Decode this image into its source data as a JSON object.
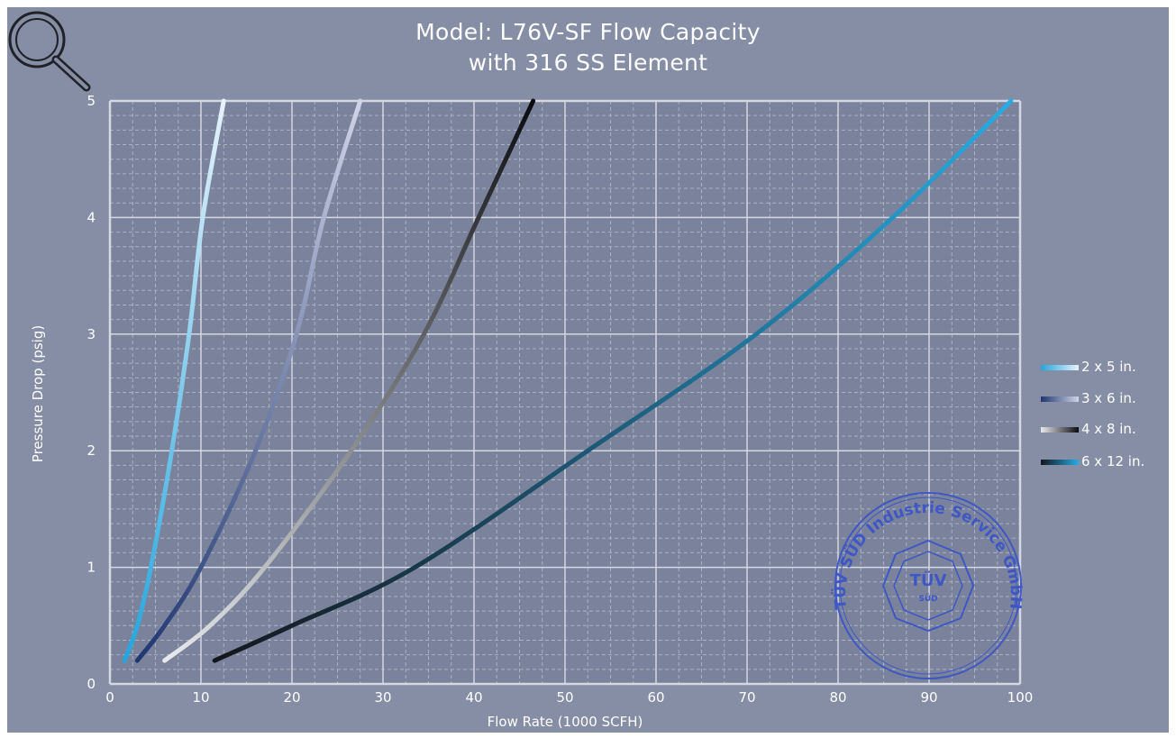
{
  "page": {
    "title_line1": "Model: L76V-SF Flow Capacity",
    "title_line2": "with 316 SS Element",
    "search_icon": "magnifier-icon",
    "stamp": {
      "text": "TÜV SÜD Industrie Service GmbH",
      "inner_text": "TÜV",
      "sub_text": "SÜD",
      "color": "#3b55c8"
    }
  },
  "colors": {
    "background": "#858ea5",
    "plot_background": "#7a839b",
    "grid_major": "#d4d8e2",
    "grid_minor": "#aab1c3"
  },
  "chart_data": {
    "type": "line",
    "title": "Model: L76V-SF Flow Capacity with 316 SS Element",
    "xlabel": "Flow Rate (1000 SCFH)",
    "ylabel": "Pressure Drop (psig)",
    "xlim": [
      0,
      100
    ],
    "ylim": [
      0,
      5
    ],
    "xticks": [
      0,
      10,
      20,
      30,
      40,
      50,
      60,
      70,
      80,
      90,
      100
    ],
    "yticks": [
      0,
      1,
      2,
      3,
      4,
      5
    ],
    "grid": true,
    "legend_position": "right",
    "series": [
      {
        "name": "2 x 5 in.",
        "color_start": "#22a6de",
        "color_end": "#e6f2fb",
        "points": [
          [
            1.6,
            0.2
          ],
          [
            3.0,
            0.5
          ],
          [
            4.5,
            1.0
          ],
          [
            6.8,
            2.0
          ],
          [
            8.7,
            3.0
          ],
          [
            10.2,
            4.0
          ],
          [
            12.5,
            5.0
          ]
        ]
      },
      {
        "name": "3 x 6 in.",
        "color_start": "#1f3670",
        "color_end": "#d0d4e8",
        "points": [
          [
            3.0,
            0.2
          ],
          [
            6.0,
            0.5
          ],
          [
            10.0,
            1.0
          ],
          [
            16.0,
            2.0
          ],
          [
            20.5,
            3.0
          ],
          [
            23.5,
            4.0
          ],
          [
            27.5,
            5.0
          ]
        ]
      },
      {
        "name": "4 x 8 in.",
        "color_start": "#e8eaee",
        "color_end": "#0b0c10",
        "points": [
          [
            6.0,
            0.2
          ],
          [
            11.0,
            0.5
          ],
          [
            17.0,
            1.0
          ],
          [
            26.5,
            2.0
          ],
          [
            34.5,
            3.0
          ],
          [
            40.5,
            4.0
          ],
          [
            46.5,
            5.0
          ]
        ]
      },
      {
        "name": "6 x 12 in.",
        "color_start": "#14161c",
        "color_end": "#27ace4",
        "points": [
          [
            11.5,
            0.2
          ],
          [
            20.0,
            0.5
          ],
          [
            33.5,
            1.0
          ],
          [
            52.5,
            2.0
          ],
          [
            71.0,
            3.0
          ],
          [
            86.0,
            4.0
          ],
          [
            99.0,
            5.0
          ]
        ]
      }
    ]
  }
}
